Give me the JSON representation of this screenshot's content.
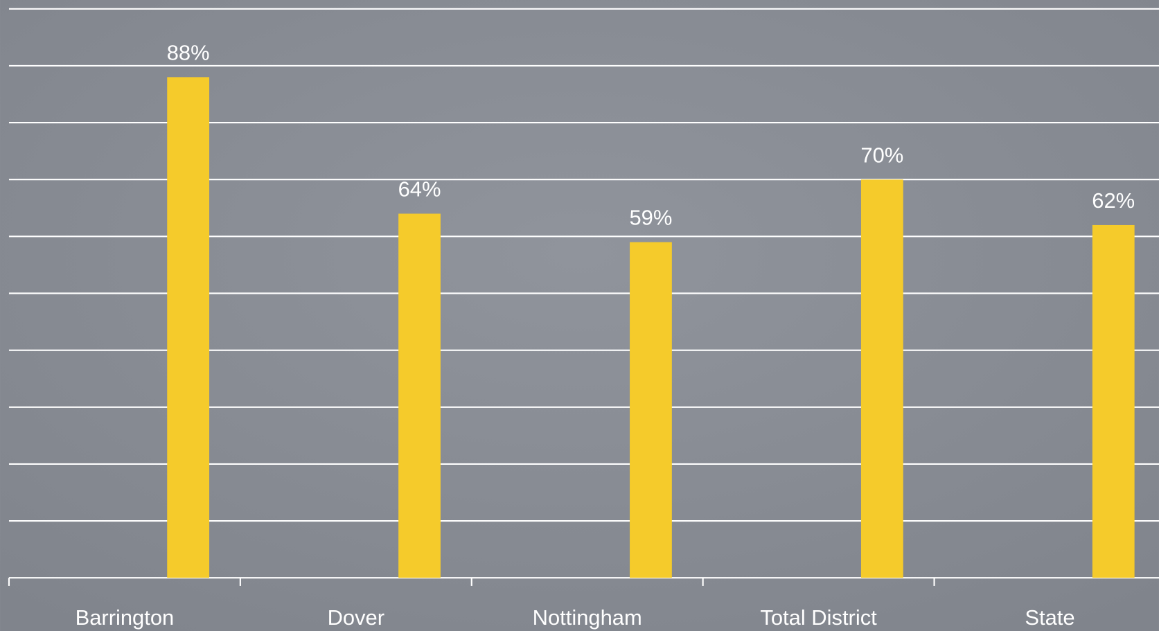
{
  "chart_data": {
    "type": "bar",
    "categories": [
      "Barrington",
      "Dover",
      "Nottingham",
      "Total District",
      "State"
    ],
    "values": [
      88,
      64,
      59,
      70,
      62
    ],
    "value_labels": [
      "88%",
      "64%",
      "59%",
      "70%",
      "62%"
    ],
    "color": "#f5cb2b",
    "ylim": [
      0,
      100
    ],
    "yticks": [
      0,
      10,
      20,
      30,
      40,
      50,
      60,
      70,
      80,
      90,
      100
    ],
    "grid": true
  }
}
